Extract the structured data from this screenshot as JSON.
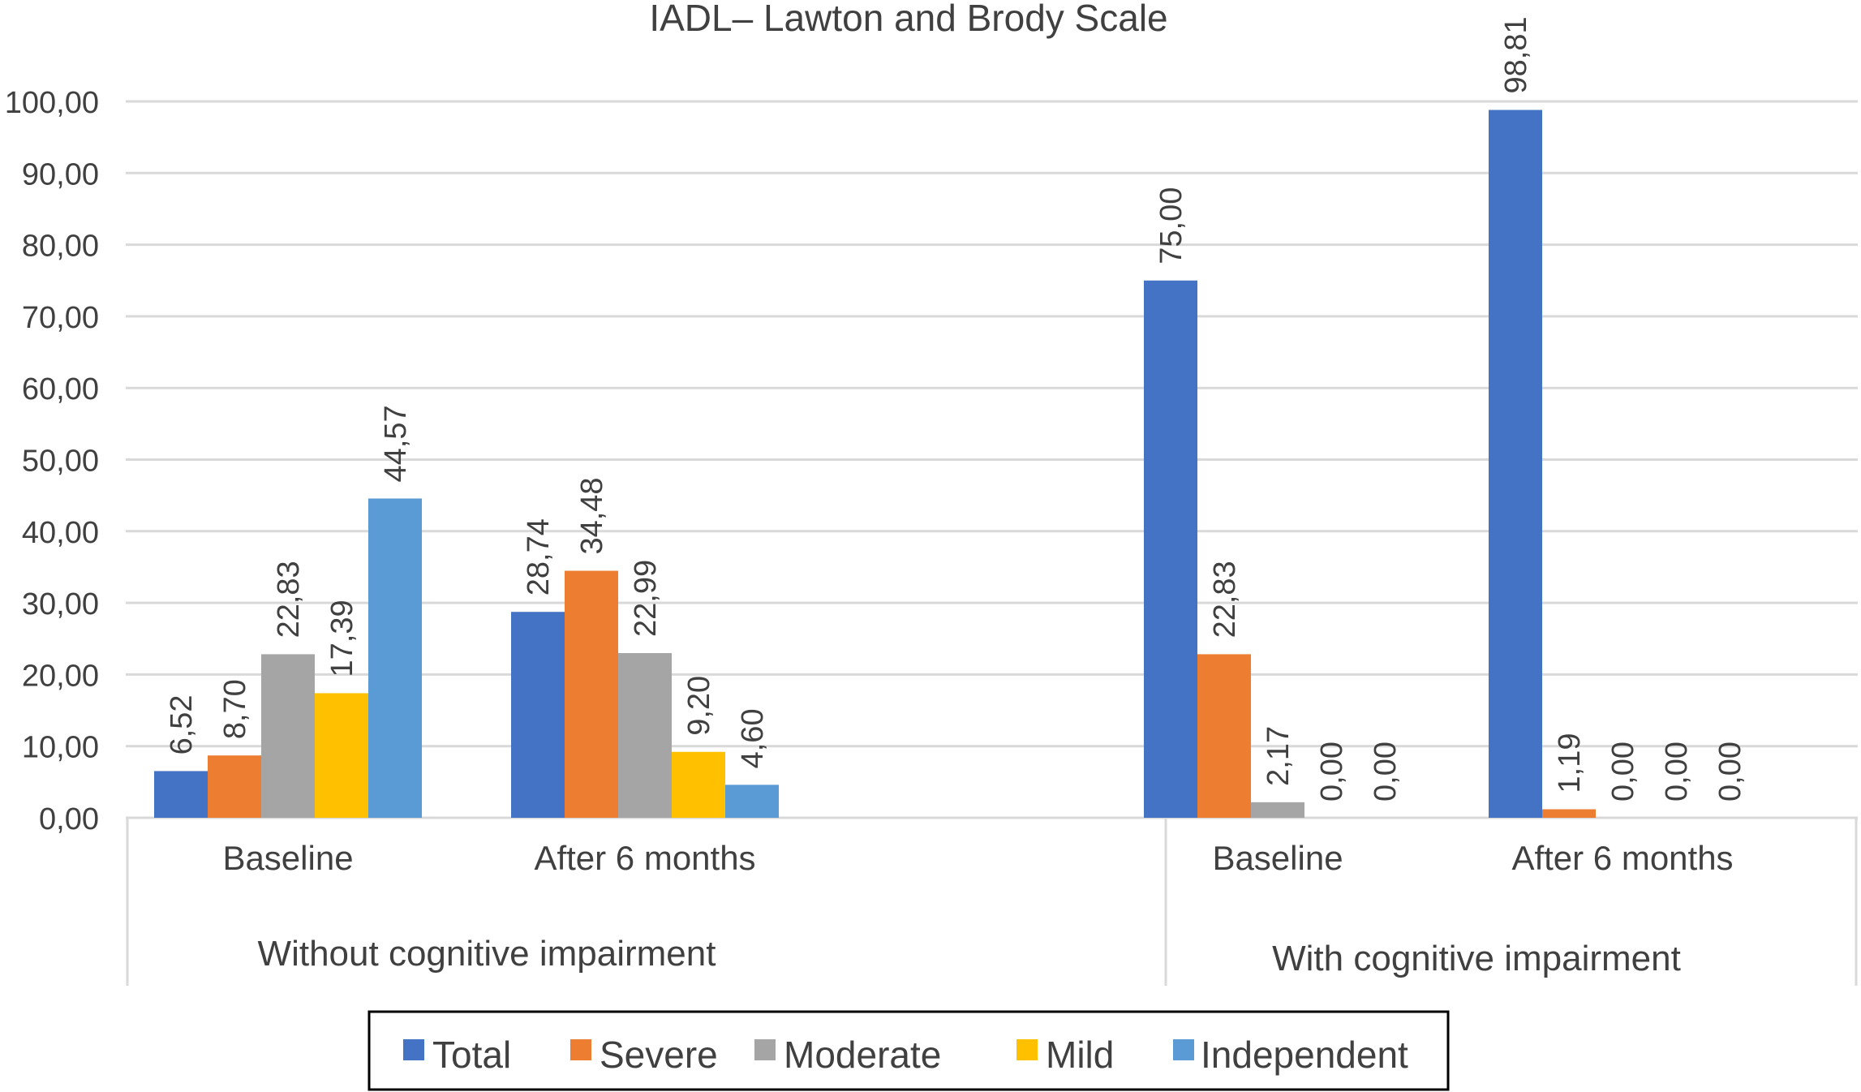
{
  "chart_data": {
    "type": "bar",
    "title": "IADL– Lawton and Brody Scale",
    "xlabel": "",
    "ylabel": "",
    "ylim": [
      0,
      100
    ],
    "ytick_labels": [
      "0,00",
      "10,00",
      "20,00",
      "30,00",
      "40,00",
      "50,00",
      "60,00",
      "70,00",
      "80,00",
      "90,00",
      "100,00"
    ],
    "grid": true,
    "legend_position": "bottom",
    "groups": [
      {
        "label": "Without cognitive impairment",
        "categories": [
          "Baseline",
          "After 6 months"
        ]
      },
      {
        "label": "With cognitive impairment",
        "categories": [
          "Baseline",
          "After 6 months"
        ]
      }
    ],
    "series": [
      {
        "name": "Total",
        "color": "#4472C4",
        "values": [
          6.52,
          28.74,
          75.0,
          98.81
        ],
        "labels": [
          "6,52",
          "28,74",
          "75,00",
          "98,81"
        ]
      },
      {
        "name": "Severe",
        "color": "#ED7D31",
        "values": [
          8.7,
          34.48,
          22.83,
          1.19
        ],
        "labels": [
          "8,70",
          "34,48",
          "22,83",
          "1,19"
        ]
      },
      {
        "name": "Moderate",
        "color": "#A5A5A5",
        "values": [
          22.83,
          22.99,
          2.17,
          0.0
        ],
        "labels": [
          "22,83",
          "22,99",
          "2,17",
          "0,00"
        ]
      },
      {
        "name": "Mild",
        "color": "#FFC000",
        "values": [
          17.39,
          9.2,
          0.0,
          0.0
        ],
        "labels": [
          "17,39",
          "9,20",
          "0,00",
          "0,00"
        ]
      },
      {
        "name": "Independent",
        "color": "#5B9BD5",
        "values": [
          44.57,
          4.6,
          0.0,
          0.0
        ],
        "labels": [
          "44,57",
          "4,60",
          "0,00",
          "0,00"
        ]
      }
    ]
  }
}
